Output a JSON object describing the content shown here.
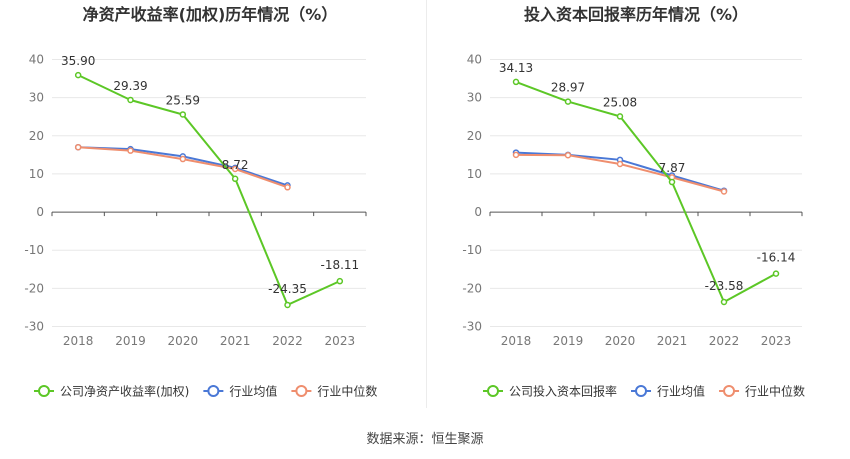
{
  "chart_data": [
    {
      "type": "line",
      "title": "净资产收益率(加权)历年情况（%）",
      "categories": [
        "2018",
        "2019",
        "2020",
        "2021",
        "2022",
        "2023"
      ],
      "ylim": [
        -30,
        40
      ],
      "yticks": [
        40,
        30,
        20,
        10,
        0,
        -10,
        -20,
        -30
      ],
      "grid": true,
      "legend_position": "bottom",
      "series": [
        {
          "name": "公司净资产收益率(加权)",
          "color": "#5cc726",
          "values": [
            35.9,
            29.39,
            25.59,
            8.72,
            -24.35,
            -18.11
          ],
          "labels": [
            "35.90",
            "29.39",
            "25.59",
            "8.72",
            "-24.35",
            "-18.11"
          ]
        },
        {
          "name": "行业均值",
          "color": "#4a78d6",
          "values": [
            17.0,
            16.5,
            14.6,
            11.6,
            7.0,
            null
          ]
        },
        {
          "name": "行业中位数",
          "color": "#ef8e6e",
          "values": [
            17.0,
            16.1,
            13.9,
            11.3,
            6.5,
            null
          ]
        }
      ]
    },
    {
      "type": "line",
      "title": "投入资本回报率历年情况（%）",
      "categories": [
        "2018",
        "2019",
        "2020",
        "2021",
        "2022",
        "2023"
      ],
      "ylim": [
        -30,
        40
      ],
      "yticks": [
        40,
        30,
        20,
        10,
        0,
        -10,
        -20,
        -30
      ],
      "grid": true,
      "legend_position": "bottom",
      "series": [
        {
          "name": "公司投入资本回报率",
          "color": "#5cc726",
          "values": [
            34.13,
            28.97,
            25.08,
            7.87,
            -23.58,
            -16.14
          ],
          "labels": [
            "34.13",
            "28.97",
            "25.08",
            "7.87",
            "-23.58",
            "-16.14"
          ]
        },
        {
          "name": "行业均值",
          "color": "#4a78d6",
          "values": [
            15.6,
            15.0,
            13.7,
            9.6,
            5.6,
            null
          ]
        },
        {
          "name": "行业中位数",
          "color": "#ef8e6e",
          "values": [
            15.0,
            14.9,
            12.6,
            9.1,
            5.4,
            null
          ]
        }
      ]
    }
  ],
  "source_text": "数据来源：恒生聚源"
}
